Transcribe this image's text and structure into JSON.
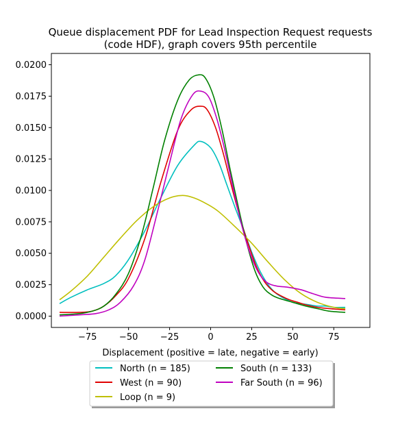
{
  "chart_data": {
    "type": "line",
    "title": "Queue displacement PDF for Lead Inspection Request  requests",
    "subtitle": "(code HDF), graph covers 95th percentile",
    "xlabel": "Displacement (positive = late, negative = early)",
    "ylabel": "",
    "xlim": [
      -97,
      97
    ],
    "ylim": [
      -0.0009,
      0.0209
    ],
    "x_ticks": [
      -75,
      -50,
      -25,
      0,
      25,
      50,
      75
    ],
    "x_tick_labels": [
      "−75",
      "−50",
      "−25",
      "0",
      "25",
      "50",
      "75"
    ],
    "y_ticks": [
      0.0,
      0.0025,
      0.005,
      0.0075,
      0.01,
      0.0125,
      0.015,
      0.0175,
      0.02
    ],
    "y_tick_labels": [
      "0.0000",
      "0.0025",
      "0.0050",
      "0.0075",
      "0.0100",
      "0.0125",
      "0.0150",
      "0.0175",
      "0.0200"
    ],
    "grid": false,
    "legend_position": "bottom-center",
    "series": [
      {
        "name": "North (n = 185)",
        "color": "#00bfbf",
        "points": [
          [
            -92,
            0.001
          ],
          [
            -85,
            0.0015
          ],
          [
            -75,
            0.0021
          ],
          [
            -65,
            0.0026
          ],
          [
            -58,
            0.0032
          ],
          [
            -50,
            0.0045
          ],
          [
            -40,
            0.0068
          ],
          [
            -30,
            0.0095
          ],
          [
            -20,
            0.012
          ],
          [
            -10,
            0.0136
          ],
          [
            -6,
            0.0139
          ],
          [
            0,
            0.0134
          ],
          [
            5,
            0.0122
          ],
          [
            10,
            0.0104
          ],
          [
            15,
            0.0086
          ],
          [
            20,
            0.0069
          ],
          [
            25,
            0.0051
          ],
          [
            30,
            0.0036
          ],
          [
            35,
            0.0025
          ],
          [
            40,
            0.0018
          ],
          [
            45,
            0.0014
          ],
          [
            50,
            0.0011
          ],
          [
            55,
            0.001
          ],
          [
            60,
            0.0009
          ],
          [
            65,
            0.0008
          ],
          [
            70,
            0.0008
          ],
          [
            75,
            0.0007
          ],
          [
            82,
            0.0007
          ]
        ]
      },
      {
        "name": "West (n = 90)",
        "color": "#e00000",
        "points": [
          [
            -92,
            0.0003
          ],
          [
            -80,
            0.0003
          ],
          [
            -72,
            0.0004
          ],
          [
            -65,
            0.0008
          ],
          [
            -58,
            0.0016
          ],
          [
            -50,
            0.003
          ],
          [
            -40,
            0.0062
          ],
          [
            -30,
            0.0108
          ],
          [
            -20,
            0.0148
          ],
          [
            -12,
            0.0164
          ],
          [
            -6,
            0.0167
          ],
          [
            -2,
            0.0164
          ],
          [
            3,
            0.015
          ],
          [
            8,
            0.0128
          ],
          [
            13,
            0.0102
          ],
          [
            18,
            0.0078
          ],
          [
            23,
            0.0057
          ],
          [
            28,
            0.0039
          ],
          [
            33,
            0.0027
          ],
          [
            38,
            0.002
          ],
          [
            43,
            0.0016
          ],
          [
            48,
            0.0013
          ],
          [
            53,
            0.0011
          ],
          [
            58,
            0.0009
          ],
          [
            65,
            0.0007
          ],
          [
            72,
            0.0006
          ],
          [
            82,
            0.0005
          ]
        ]
      },
      {
        "name": "Loop (n = 9)",
        "color": "#bfbf00",
        "points": [
          [
            -92,
            0.0013
          ],
          [
            -85,
            0.002
          ],
          [
            -75,
            0.0032
          ],
          [
            -65,
            0.0047
          ],
          [
            -55,
            0.0062
          ],
          [
            -45,
            0.0076
          ],
          [
            -35,
            0.0087
          ],
          [
            -25,
            0.0094
          ],
          [
            -17,
            0.0096
          ],
          [
            -10,
            0.0094
          ],
          [
            -2,
            0.0089
          ],
          [
            5,
            0.0083
          ],
          [
            15,
            0.0071
          ],
          [
            25,
            0.0058
          ],
          [
            35,
            0.0043
          ],
          [
            45,
            0.0029
          ],
          [
            55,
            0.0018
          ],
          [
            65,
            0.0011
          ],
          [
            75,
            0.0007
          ],
          [
            82,
            0.0006
          ]
        ]
      },
      {
        "name": "South (n = 133)",
        "color": "#008000",
        "points": [
          [
            -92,
            0.0001
          ],
          [
            -80,
            0.0002
          ],
          [
            -72,
            0.0004
          ],
          [
            -65,
            0.0008
          ],
          [
            -58,
            0.0017
          ],
          [
            -50,
            0.0034
          ],
          [
            -42,
            0.0065
          ],
          [
            -35,
            0.0102
          ],
          [
            -28,
            0.014
          ],
          [
            -20,
            0.0172
          ],
          [
            -13,
            0.0188
          ],
          [
            -7,
            0.0192
          ],
          [
            -3,
            0.0189
          ],
          [
            2,
            0.0174
          ],
          [
            7,
            0.0148
          ],
          [
            12,
            0.0116
          ],
          [
            17,
            0.0086
          ],
          [
            22,
            0.0058
          ],
          [
            27,
            0.0036
          ],
          [
            32,
            0.0023
          ],
          [
            37,
            0.0017
          ],
          [
            42,
            0.0014
          ],
          [
            50,
            0.0011
          ],
          [
            58,
            0.0008
          ],
          [
            65,
            0.0006
          ],
          [
            72,
            0.0004
          ],
          [
            82,
            0.0003
          ]
        ]
      },
      {
        "name": "Far South (n = 96)",
        "color": "#bf00bf",
        "points": [
          [
            -92,
            0.0
          ],
          [
            -80,
            0.0001
          ],
          [
            -70,
            0.0002
          ],
          [
            -62,
            0.0005
          ],
          [
            -55,
            0.0011
          ],
          [
            -47,
            0.0024
          ],
          [
            -40,
            0.0045
          ],
          [
            -32,
            0.0085
          ],
          [
            -25,
            0.0122
          ],
          [
            -18,
            0.0157
          ],
          [
            -11,
            0.0176
          ],
          [
            -6,
            0.0179
          ],
          [
            -1,
            0.0174
          ],
          [
            4,
            0.0156
          ],
          [
            9,
            0.013
          ],
          [
            14,
            0.01
          ],
          [
            19,
            0.0072
          ],
          [
            24,
            0.005
          ],
          [
            29,
            0.0035
          ],
          [
            34,
            0.0027
          ],
          [
            40,
            0.0024
          ],
          [
            47,
            0.0023
          ],
          [
            55,
            0.0021
          ],
          [
            62,
            0.0018
          ],
          [
            70,
            0.0015
          ],
          [
            82,
            0.0014
          ]
        ]
      }
    ]
  }
}
